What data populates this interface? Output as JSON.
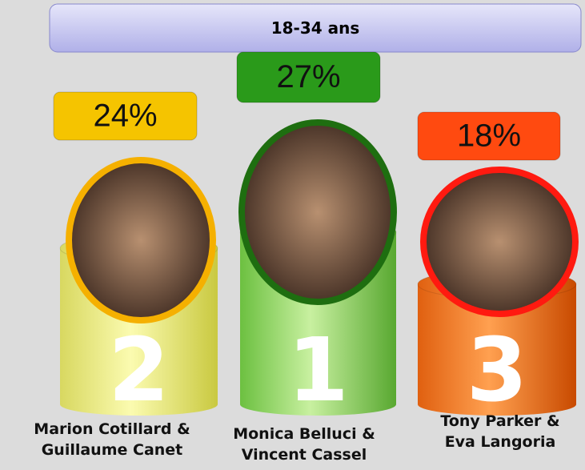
{
  "header": {
    "title": "18-34 ans"
  },
  "podium": [
    {
      "rank": "2",
      "value": "24%",
      "name_lines": [
        "Marion Cotillard &",
        "Guillaume Canet"
      ]
    },
    {
      "rank": "1",
      "value": "27%",
      "name_lines": [
        "Monica Belluci &",
        "Vincent Cassel"
      ]
    },
    {
      "rank": "3",
      "value": "18%",
      "name_lines": [
        "Tony Parker &",
        "Eva Langoria"
      ]
    }
  ]
}
